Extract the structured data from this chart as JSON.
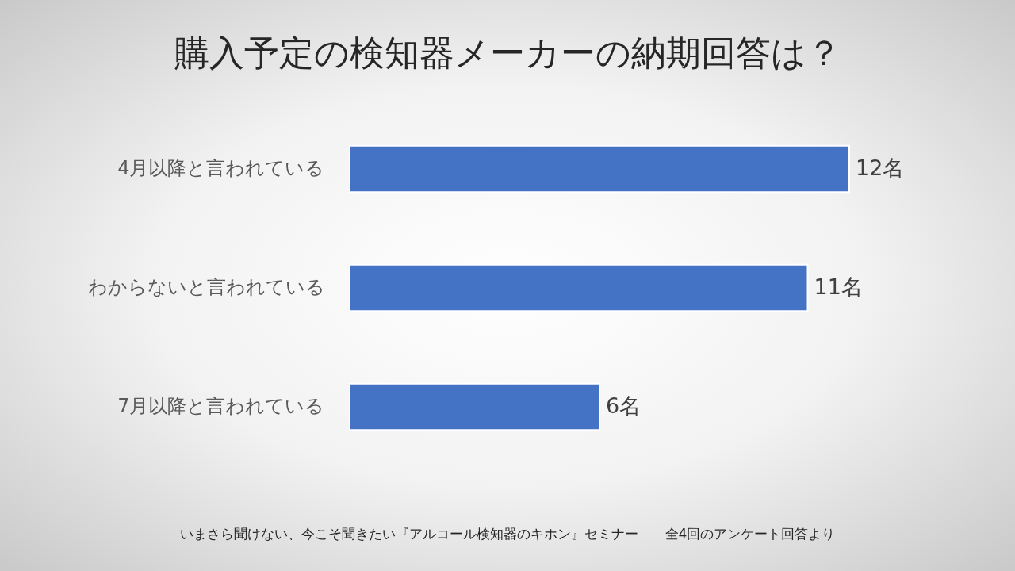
{
  "chart_data": {
    "type": "bar",
    "orientation": "horizontal",
    "title": "購入予定の検知器メーカーの納期回答は？",
    "categories": [
      "4月以降と言われている",
      "わからないと言われている",
      "7月以降と言われている"
    ],
    "values": [
      12,
      11,
      6
    ],
    "value_labels": [
      "12名",
      "11名",
      "6名"
    ],
    "color": "#4472c4",
    "annotations": [
      "いまさら聞けない、今こそ聞きたい『アルコール検知器のキホン』セミナー　　全4回のアンケート回答より"
    ]
  }
}
